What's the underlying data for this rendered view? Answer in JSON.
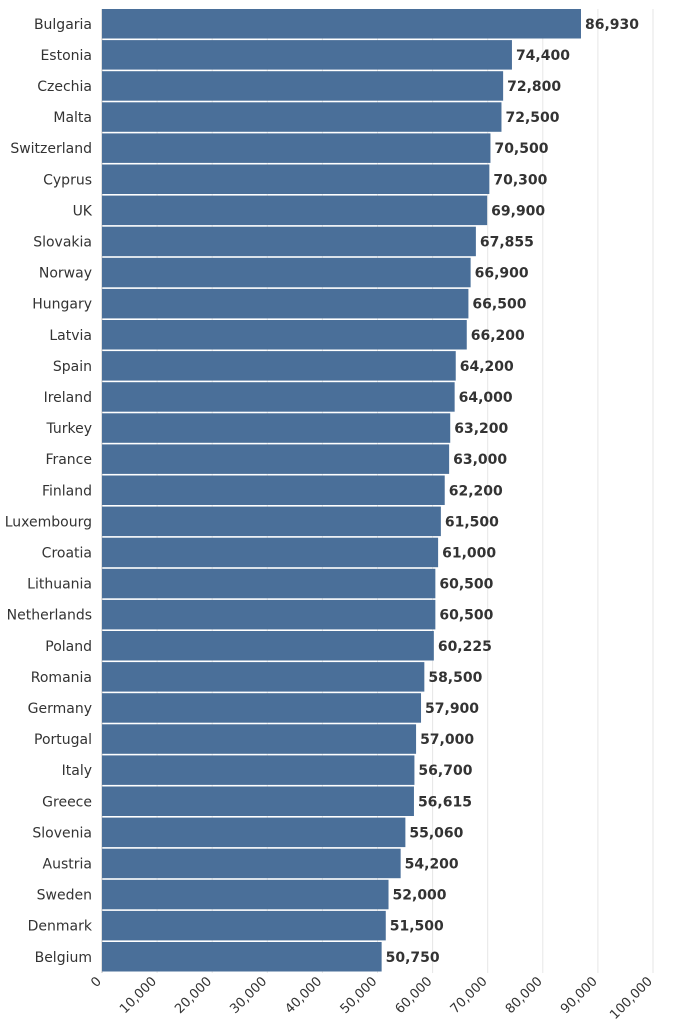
{
  "chart_data": {
    "type": "bar",
    "orientation": "horizontal",
    "categories": [
      "Bulgaria",
      "Estonia",
      "Czechia",
      "Malta",
      "Switzerland",
      "Cyprus",
      "UK",
      "Slovakia",
      "Norway",
      "Hungary",
      "Latvia",
      "Spain",
      "Ireland",
      "Turkey",
      "France",
      "Finland",
      "Luxembourg",
      "Croatia",
      "Lithuania",
      "Netherlands",
      "Poland",
      "Romania",
      "Germany",
      "Portugal",
      "Italy",
      "Greece",
      "Slovenia",
      "Austria",
      "Sweden",
      "Denmark",
      "Belgium"
    ],
    "values": [
      86930,
      74400,
      72800,
      72500,
      70500,
      70300,
      69900,
      67855,
      66900,
      66500,
      66200,
      64200,
      64000,
      63200,
      63000,
      62200,
      61500,
      61000,
      60500,
      60500,
      60225,
      58500,
      57900,
      57000,
      56700,
      56615,
      55060,
      54200,
      52000,
      51500,
      50750
    ],
    "value_labels": [
      "86,930",
      "74,400",
      "72,800",
      "72,500",
      "70,500",
      "70,300",
      "69,900",
      "67,855",
      "66,900",
      "66,500",
      "66,200",
      "64,200",
      "64,000",
      "63,200",
      "63,000",
      "62,200",
      "61,500",
      "61,000",
      "60,500",
      "60,500",
      "60,225",
      "58,500",
      "57,900",
      "57,000",
      "56,700",
      "56,615",
      "55,060",
      "54,200",
      "52,000",
      "51,500",
      "50,750"
    ],
    "title": "",
    "xlabel": "",
    "ylabel": "",
    "xlim": [
      0,
      100000
    ],
    "ticks": [
      0,
      10000,
      20000,
      30000,
      40000,
      50000,
      60000,
      70000,
      80000,
      90000,
      100000
    ],
    "tick_labels": [
      "0",
      "10,000",
      "20,000",
      "30,000",
      "40,000",
      "50,000",
      "60,000",
      "70,000",
      "80,000",
      "90,000",
      "100,000"
    ],
    "grid": true,
    "bar_color": "#4a6f99"
  }
}
